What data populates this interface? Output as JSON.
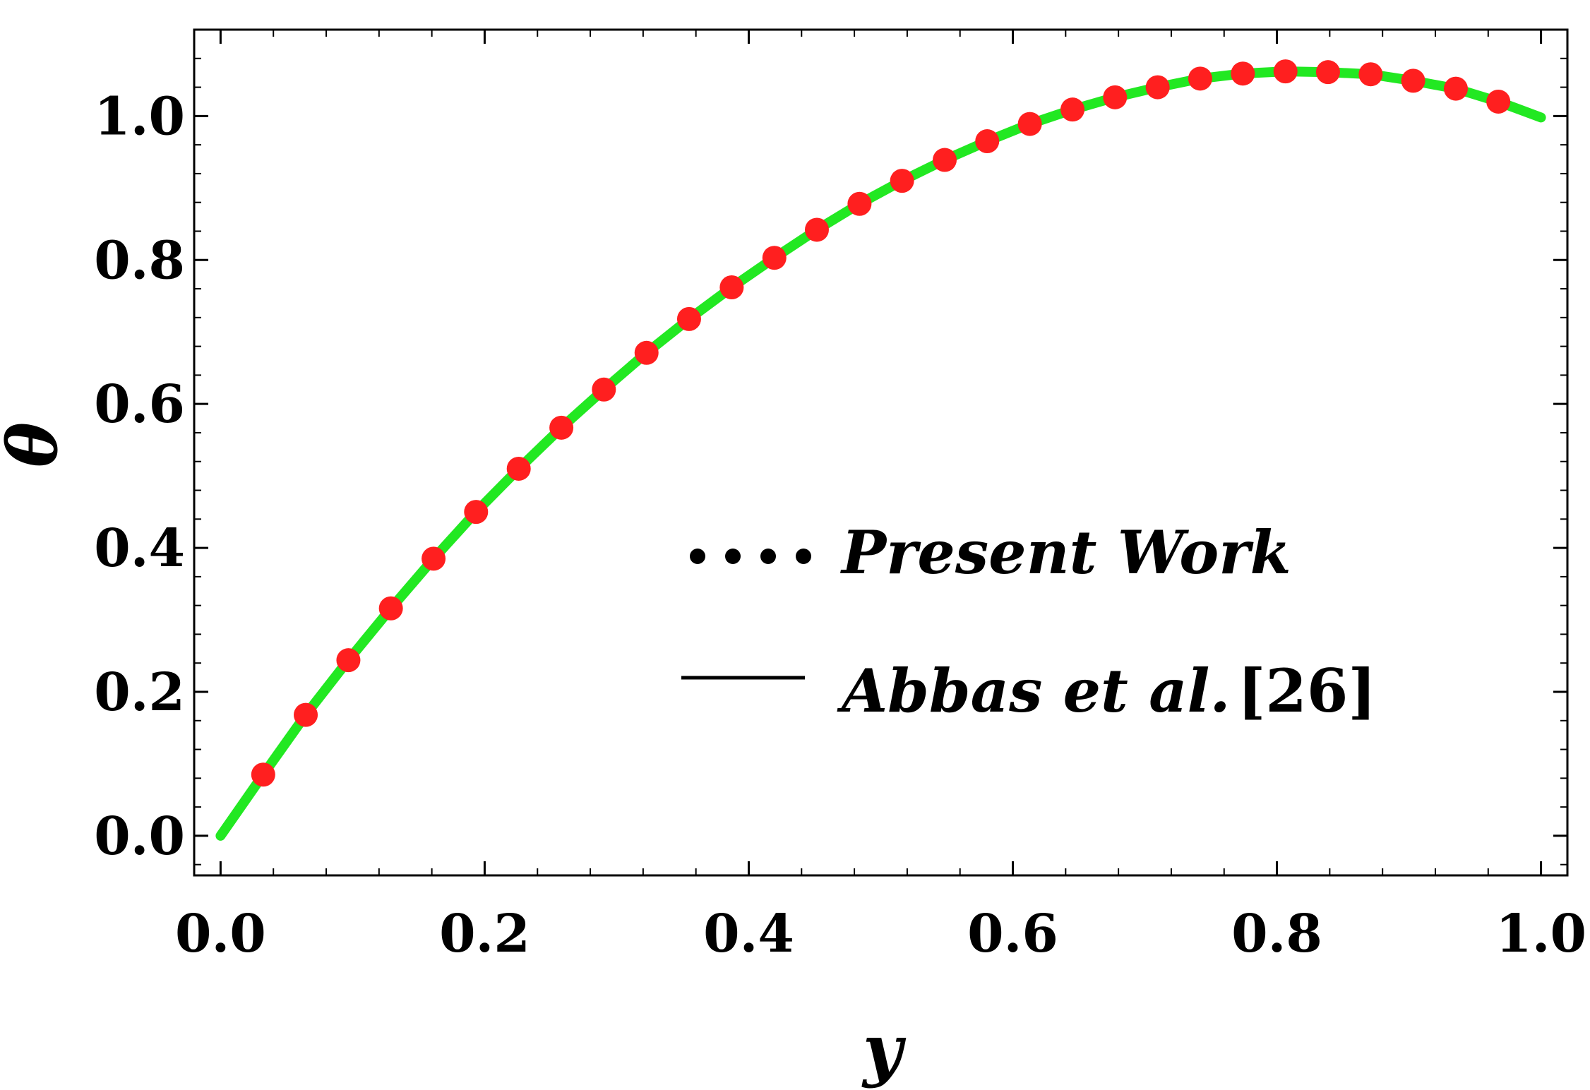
{
  "chart_data": {
    "type": "line",
    "xlabel": "y",
    "ylabel": "θ",
    "xlim": [
      -0.02,
      1.02
    ],
    "ylim": [
      -0.055,
      1.12
    ],
    "xticks": [
      "0.0",
      "0.2",
      "0.4",
      "0.6",
      "0.8",
      "1.0"
    ],
    "yticks": [
      "0.0",
      "0.2",
      "0.4",
      "0.6",
      "0.8",
      "1.0"
    ],
    "grid": false,
    "legend_position": "center-right",
    "series": [
      {
        "name": "Present Work",
        "style": "points",
        "color": "#ff1f1f",
        "x": [
          0.0323,
          0.0645,
          0.0968,
          0.129,
          0.1613,
          0.1935,
          0.2258,
          0.2581,
          0.2903,
          0.3226,
          0.3548,
          0.3871,
          0.4194,
          0.4516,
          0.4839,
          0.5161,
          0.5484,
          0.5806,
          0.6129,
          0.6452,
          0.6774,
          0.7097,
          0.7419,
          0.7742,
          0.8065,
          0.8387,
          0.871,
          0.9032,
          0.9355,
          0.9677
        ],
        "y": [
          0.085,
          0.168,
          0.244,
          0.316,
          0.385,
          0.45,
          0.51,
          0.567,
          0.62,
          0.671,
          0.718,
          0.762,
          0.803,
          0.842,
          0.878,
          0.91,
          0.939,
          0.965,
          0.989,
          1.009,
          1.026,
          1.04,
          1.052,
          1.059,
          1.062,
          1.061,
          1.058,
          1.049,
          1.038,
          1.02
        ]
      },
      {
        "name": "Abbas et al.",
        "name_ref": "[26]",
        "style": "line",
        "color": "#22e822",
        "x": [
          0.0,
          0.0323,
          0.0645,
          0.0968,
          0.129,
          0.1613,
          0.1935,
          0.2258,
          0.2581,
          0.2903,
          0.3226,
          0.3548,
          0.3871,
          0.4194,
          0.4516,
          0.4839,
          0.5161,
          0.5484,
          0.5806,
          0.6129,
          0.6452,
          0.6774,
          0.7097,
          0.7419,
          0.7742,
          0.8065,
          0.8387,
          0.871,
          0.9032,
          0.9355,
          0.9677,
          1.0
        ],
        "y": [
          0.0,
          0.085,
          0.168,
          0.244,
          0.316,
          0.385,
          0.45,
          0.51,
          0.567,
          0.62,
          0.671,
          0.718,
          0.762,
          0.803,
          0.842,
          0.878,
          0.91,
          0.939,
          0.965,
          0.989,
          1.009,
          1.026,
          1.04,
          1.052,
          1.059,
          1.062,
          1.061,
          1.058,
          1.049,
          1.038,
          1.02,
          0.998
        ]
      }
    ],
    "legend_line_color": "#000000",
    "legend_marker_color": "#000000"
  }
}
